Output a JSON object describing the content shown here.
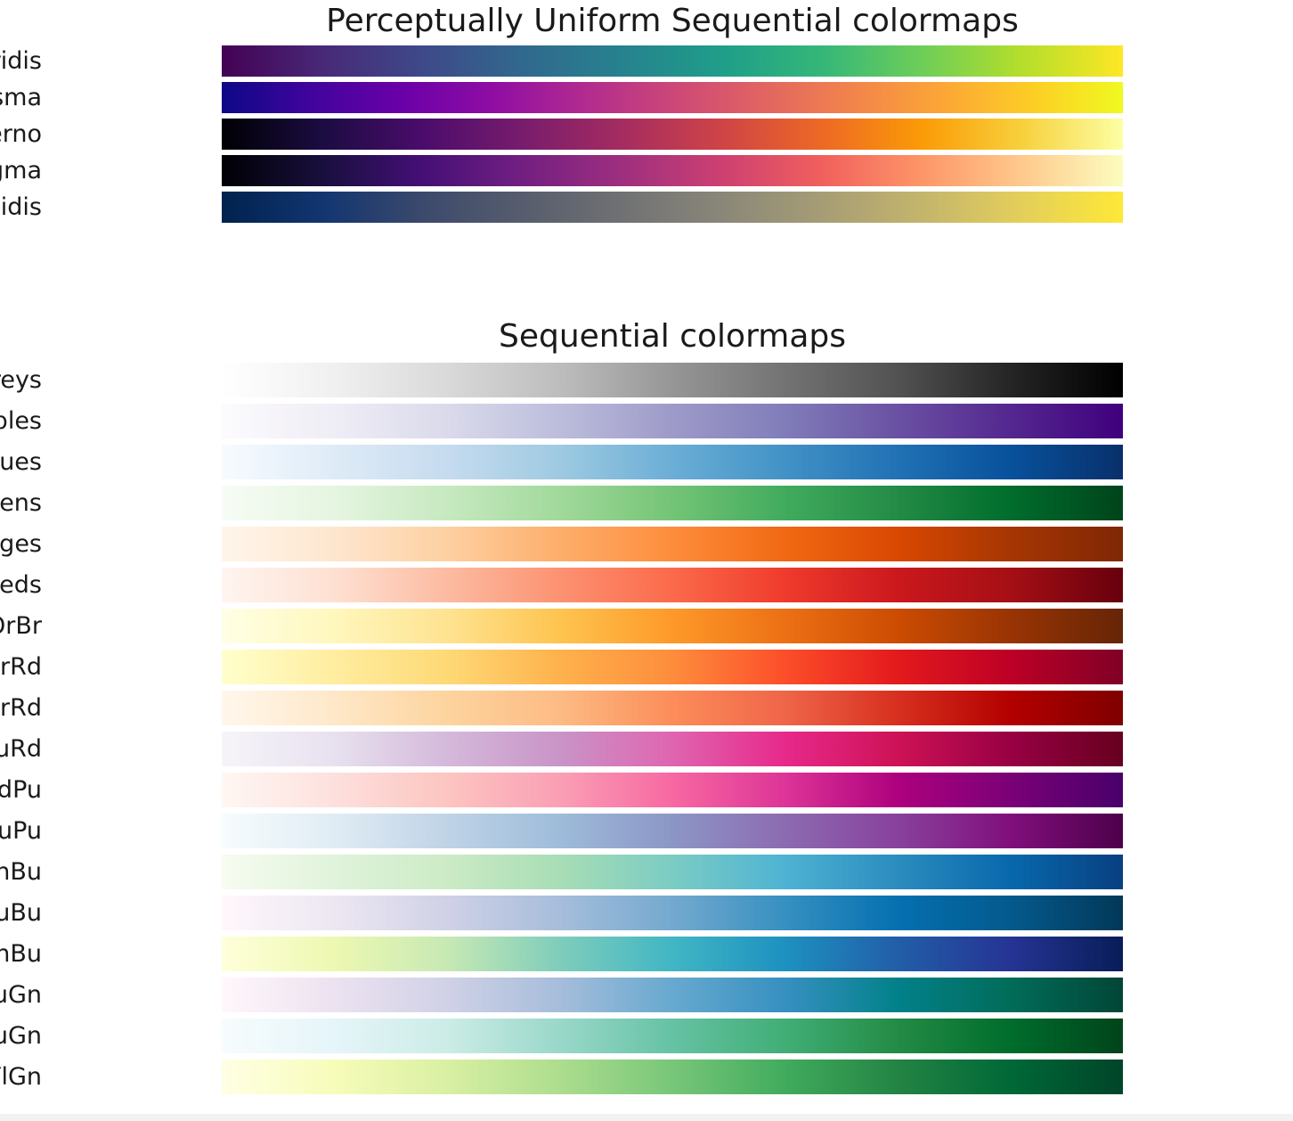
{
  "chart_data": [
    {
      "type": "heatmap",
      "title": "Perceptually Uniform Sequential colormaps",
      "colormaps": [
        {
          "name": "viridis",
          "stops": [
            "#440154",
            "#482878",
            "#3e4989",
            "#31688e",
            "#26828e",
            "#1f9e89",
            "#35b779",
            "#6ece58",
            "#b5de2b",
            "#fde725"
          ]
        },
        {
          "name": "plasma",
          "stops": [
            "#0d0887",
            "#41049d",
            "#6a00a8",
            "#8f0da4",
            "#b12a90",
            "#cc4778",
            "#e16462",
            "#f2844b",
            "#fca636",
            "#fcce25",
            "#f0f921"
          ]
        },
        {
          "name": "inferno",
          "stops": [
            "#000004",
            "#1b0c41",
            "#4a0c6b",
            "#781c6d",
            "#a52c60",
            "#cf4446",
            "#ed6925",
            "#fb9b06",
            "#f7d13d",
            "#fcffa4"
          ]
        },
        {
          "name": "magma",
          "stops": [
            "#000004",
            "#180f3d",
            "#440f76",
            "#721f81",
            "#9e2f7f",
            "#cd4071",
            "#f1605d",
            "#fd9668",
            "#feca8d",
            "#fcfdbf"
          ]
        },
        {
          "name": "cividis",
          "stops": [
            "#00224e",
            "#123570",
            "#3b496c",
            "#575d6d",
            "#707173",
            "#8a8779",
            "#a69d75",
            "#c4b56c",
            "#e4cf5b",
            "#fee838"
          ]
        }
      ]
    },
    {
      "type": "heatmap",
      "title": "Sequential colormaps",
      "colormaps": [
        {
          "name": "Greys",
          "stops": [
            "#ffffff",
            "#f0f0f0",
            "#d9d9d9",
            "#bdbdbd",
            "#969696",
            "#737373",
            "#525252",
            "#252525",
            "#000000"
          ]
        },
        {
          "name": "Purples",
          "stops": [
            "#fcfbfd",
            "#efedf5",
            "#dadaeb",
            "#bcbddc",
            "#9e9ac8",
            "#807dba",
            "#6a51a3",
            "#54278f",
            "#3f007d"
          ]
        },
        {
          "name": "Blues",
          "stops": [
            "#f7fbff",
            "#deebf7",
            "#c6dbef",
            "#9ecae1",
            "#6baed6",
            "#4292c6",
            "#2171b5",
            "#08519c",
            "#08306b"
          ]
        },
        {
          "name": "Greens",
          "stops": [
            "#f7fcf5",
            "#e5f5e0",
            "#c7e9c0",
            "#a1d99b",
            "#74c476",
            "#41ab5d",
            "#238b45",
            "#006d2c",
            "#00441b"
          ]
        },
        {
          "name": "Oranges",
          "stops": [
            "#fff5eb",
            "#fee6ce",
            "#fdd0a2",
            "#fdae6b",
            "#fd8d3c",
            "#f16913",
            "#d94801",
            "#a63603",
            "#7f2704"
          ]
        },
        {
          "name": "Reds",
          "stops": [
            "#fff5f0",
            "#fee0d2",
            "#fcbba1",
            "#fc9272",
            "#fb6a4a",
            "#ef3b2c",
            "#cb181d",
            "#a50f15",
            "#67000d"
          ]
        },
        {
          "name": "YlOrBr",
          "stops": [
            "#ffffe5",
            "#fff7bc",
            "#fee391",
            "#fec44f",
            "#fe9929",
            "#ec7014",
            "#cc4c02",
            "#993404",
            "#662506"
          ]
        },
        {
          "name": "YlOrRd",
          "stops": [
            "#ffffcc",
            "#ffeda0",
            "#fed976",
            "#feb24c",
            "#fd8d3c",
            "#fc4e2a",
            "#e31a1c",
            "#bd0026",
            "#800026"
          ]
        },
        {
          "name": "OrRd",
          "stops": [
            "#fff7ec",
            "#fee8c8",
            "#fdd49e",
            "#fdbb84",
            "#fc8d59",
            "#ef6548",
            "#d7301f",
            "#b30000",
            "#7f0000"
          ]
        },
        {
          "name": "PuRd",
          "stops": [
            "#f7f4f9",
            "#e7e1ef",
            "#d4b9da",
            "#c994c7",
            "#df65b0",
            "#e7298a",
            "#ce1256",
            "#980043",
            "#67001f"
          ]
        },
        {
          "name": "RdPu",
          "stops": [
            "#fff7f3",
            "#fde0dd",
            "#fcc5c0",
            "#fa9fb5",
            "#f768a1",
            "#dd3497",
            "#ae017e",
            "#7a0177",
            "#49006a"
          ]
        },
        {
          "name": "BuPu",
          "stops": [
            "#f7fcfd",
            "#e0ecf4",
            "#bfd3e6",
            "#9ebcda",
            "#8c96c6",
            "#8c6bb1",
            "#88419d",
            "#810f7c",
            "#4d004b"
          ]
        },
        {
          "name": "GnBu",
          "stops": [
            "#f7fcf0",
            "#e0f3db",
            "#ccebc5",
            "#a8ddb5",
            "#7bccc4",
            "#4eb3d3",
            "#2b8cbe",
            "#0868ac",
            "#084081"
          ]
        },
        {
          "name": "PuBu",
          "stops": [
            "#fff7fb",
            "#ece7f2",
            "#d0d1e6",
            "#a6bddb",
            "#74a9cf",
            "#3690c0",
            "#0570b0",
            "#045a8d",
            "#023858"
          ]
        },
        {
          "name": "YlGnBu",
          "stops": [
            "#ffffd9",
            "#edf8b1",
            "#c7e9b4",
            "#7fcdbb",
            "#41b6c4",
            "#1d91c0",
            "#225ea8",
            "#253494",
            "#081d58"
          ]
        },
        {
          "name": "PuBuGn",
          "stops": [
            "#fff7fb",
            "#ece2f0",
            "#d0d1e6",
            "#a6bddb",
            "#67a9cf",
            "#3690c0",
            "#02818a",
            "#016c59",
            "#014636"
          ]
        },
        {
          "name": "BuGn",
          "stops": [
            "#f7fcfd",
            "#e5f5f9",
            "#ccece6",
            "#99d8c9",
            "#66c2a4",
            "#41ae76",
            "#238b45",
            "#006d2c",
            "#00441b"
          ]
        },
        {
          "name": "YlGn",
          "stops": [
            "#ffffe5",
            "#f7fcb9",
            "#d9f0a3",
            "#addd8e",
            "#78c679",
            "#41ab5d",
            "#238443",
            "#006837",
            "#004529"
          ]
        }
      ]
    }
  ]
}
